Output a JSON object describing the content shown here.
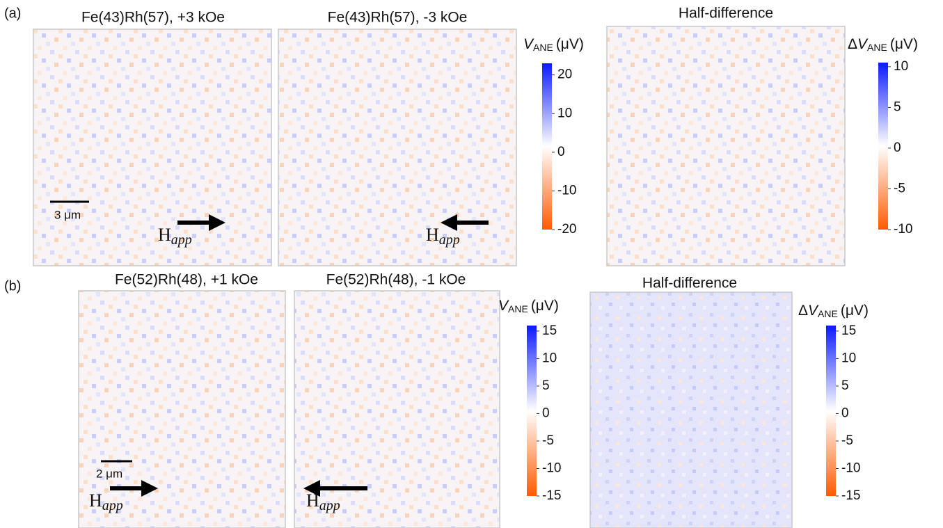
{
  "colormap": [
    "#ff5a00",
    "#ffffff",
    "#0a1aff"
  ],
  "panels": [
    {
      "label": "(a)",
      "maps": [
        {
          "title": "Fe(43)Rh(57), +3 kOe",
          "field": "H",
          "field_sub": "app",
          "scale_bar": "3 μm"
        },
        {
          "title": "Fe(43)Rh(57), -3 kOe",
          "field": "H",
          "field_sub": "app"
        },
        {
          "title": "Half-difference"
        }
      ],
      "colorbars": [
        {
          "prefix": "",
          "symbol": "V",
          "sub": "ANE",
          "unit": "(μV)",
          "lim": [
            -20,
            23
          ],
          "ticks": [
            20,
            10,
            0,
            -10,
            -20
          ]
        },
        {
          "prefix": "Δ",
          "symbol": "V",
          "sub": "ANE",
          "unit": "(μV)",
          "lim": [
            -10,
            10.5
          ],
          "ticks": [
            10,
            5,
            0,
            -5,
            -10
          ]
        }
      ]
    },
    {
      "label": "(b)",
      "maps": [
        {
          "title": "Fe(52)Rh(48), +1 kOe",
          "field": "H",
          "field_sub": "app",
          "scale_bar": "2 μm"
        },
        {
          "title": "Fe(52)Rh(48), -1 kOe",
          "field": "H",
          "field_sub": "app"
        },
        {
          "title": "Half-difference"
        }
      ],
      "colorbars": [
        {
          "prefix": "",
          "symbol": "V",
          "sub": "ANE",
          "unit": "(μV)",
          "lim": [
            -15,
            16
          ],
          "ticks": [
            15,
            10,
            5,
            0,
            -5,
            -10,
            -15
          ]
        },
        {
          "prefix": "Δ",
          "symbol": "V",
          "sub": "ANE",
          "unit": "(μV)",
          "lim": [
            -15,
            16
          ],
          "ticks": [
            15,
            10,
            5,
            0,
            -5,
            -10,
            -15
          ]
        }
      ]
    }
  ]
}
